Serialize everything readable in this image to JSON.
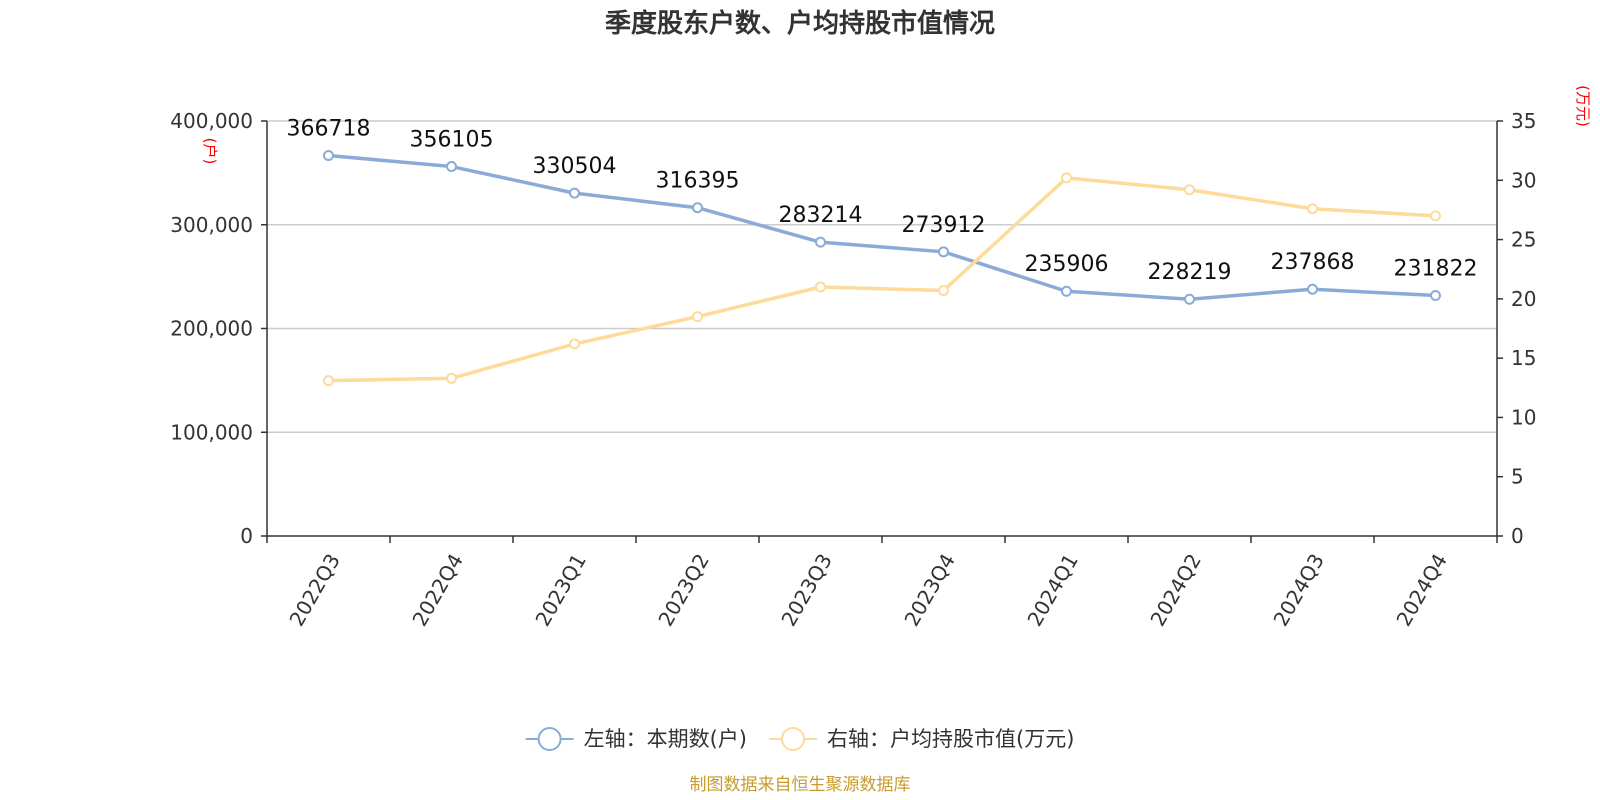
{
  "chart_data": {
    "type": "line",
    "title": "季度股东户数、户均持股市值情况",
    "categories": [
      "2022Q3",
      "2022Q4",
      "2023Q1",
      "2023Q2",
      "2023Q3",
      "2023Q4",
      "2024Q1",
      "2024Q2",
      "2024Q3",
      "2024Q4"
    ],
    "left_axis": {
      "unit": "(户)",
      "ylim": [
        0,
        400000
      ],
      "ticks": [
        "0",
        "100,000",
        "200,000",
        "300,000",
        "400,000"
      ]
    },
    "right_axis": {
      "unit": "(万元)",
      "ylim": [
        0,
        35
      ],
      "ticks": [
        "0",
        "5",
        "10",
        "15",
        "20",
        "25",
        "30",
        "35"
      ]
    },
    "series": [
      {
        "name": "左轴：本期数(户)",
        "axis": "left",
        "color": "#8aabd8",
        "values": [
          366718,
          356105,
          330504,
          316395,
          283214,
          273912,
          235906,
          228219,
          237868,
          231822
        ],
        "labels": [
          "366718",
          "356105",
          "330504",
          "316395",
          "283214",
          "273912",
          "235906",
          "228219",
          "237868",
          "231822"
        ]
      },
      {
        "name": "右轴：户均持股市值(万元)",
        "axis": "right",
        "color": "#fddb9a",
        "values": [
          13.1,
          13.3,
          16.2,
          18.5,
          21.0,
          20.7,
          30.2,
          29.2,
          27.6,
          27.0
        ]
      }
    ],
    "grid": true,
    "legend_position": "bottom-center",
    "source": "制图数据来自恒生聚源数据库"
  }
}
